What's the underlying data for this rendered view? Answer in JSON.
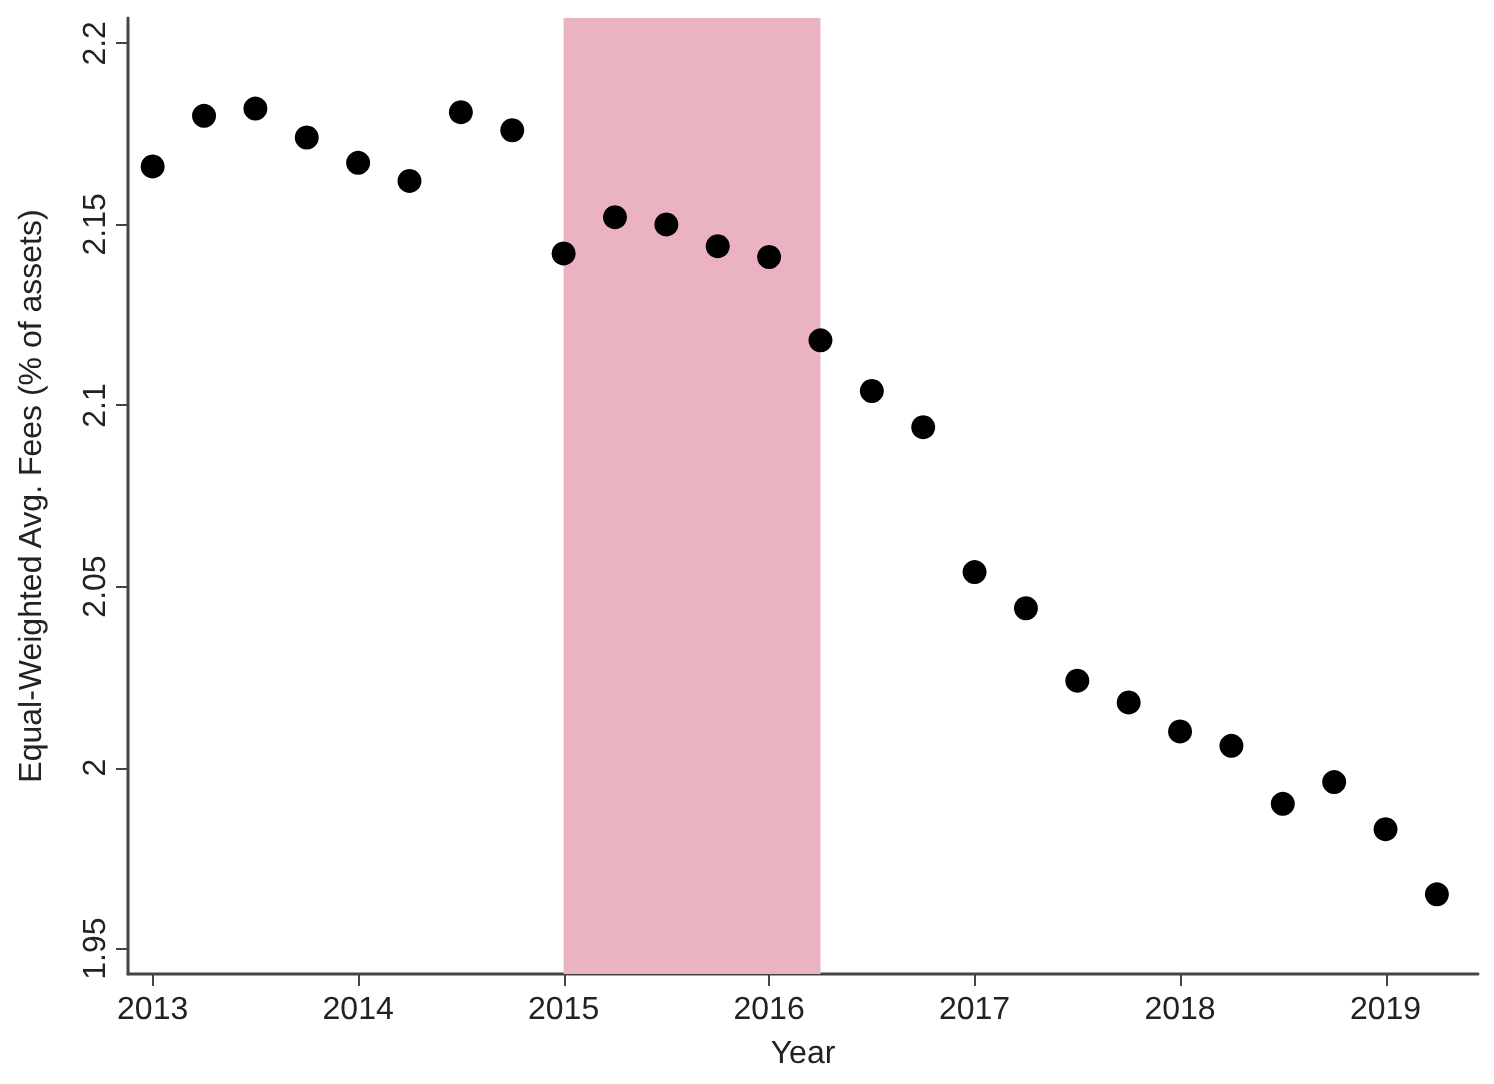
{
  "chart_data": {
    "type": "scatter",
    "xlabel": "Year",
    "ylabel": "Equal-Weighted Avg. Fees (% of assets)",
    "x": [
      2013,
      2013.25,
      2013.5,
      2013.75,
      2014,
      2014.25,
      2014.5,
      2014.75,
      2015,
      2015.25,
      2015.5,
      2015.75,
      2016,
      2016.25,
      2016.5,
      2016.75,
      2017,
      2017.25,
      2017.5,
      2017.75,
      2018,
      2018.25,
      2018.5,
      2018.75,
      2019,
      2019.25
    ],
    "values": [
      2.166,
      2.18,
      2.182,
      2.174,
      2.167,
      2.162,
      2.181,
      2.176,
      2.142,
      2.152,
      2.15,
      2.144,
      2.141,
      2.118,
      2.104,
      2.094,
      2.054,
      2.044,
      2.024,
      2.018,
      2.01,
      2.006,
      1.99,
      1.996,
      1.983,
      1.965
    ],
    "color": "#000000",
    "marker": "circle",
    "xlim": [
      2012.88,
      2019.45
    ],
    "xticks": [
      2013,
      2014,
      2015,
      2016,
      2017,
      2018,
      2019
    ],
    "ylim": [
      1.943,
      2.207
    ],
    "yticks": [
      1.95,
      2,
      2.05,
      2.1,
      2.15,
      2.2
    ],
    "bands": [
      {
        "axis": "x",
        "from": 2015,
        "to": 2016.25,
        "color": "#ebb3c1"
      }
    ],
    "grid": false
  }
}
